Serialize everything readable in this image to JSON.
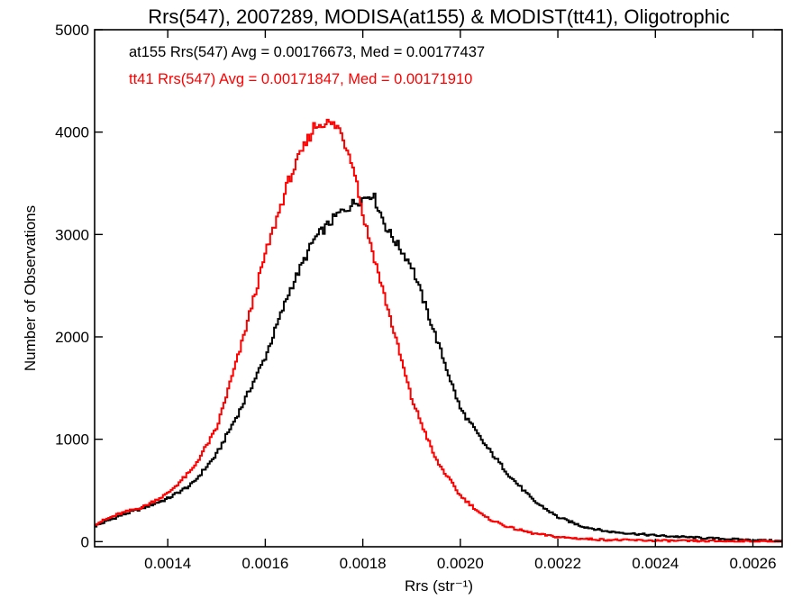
{
  "chart_data": {
    "type": "line",
    "step": true,
    "title": "Rrs(547), 2007289, MODISA(at155) & MODIST(tt41), Oligotrophic",
    "xlabel": "Rrs (str⁻¹)",
    "ylabel": "Number of Observations",
    "xlim": [
      0.00125,
      0.00266
    ],
    "ylim": [
      -50,
      5000
    ],
    "xticks": [
      0.0014,
      0.0016,
      0.0018,
      0.002,
      0.0022,
      0.0024,
      0.0026
    ],
    "xtick_labels": [
      "0.0014",
      "0.0016",
      "0.0018",
      "0.0020",
      "0.0022",
      "0.0024",
      "0.0026"
    ],
    "yticks": [
      0,
      1000,
      2000,
      3000,
      4000,
      5000
    ],
    "ytick_labels": [
      "0",
      "1000",
      "2000",
      "3000",
      "4000",
      "5000"
    ],
    "grid": false,
    "legend_position": "top-left",
    "annotations": [
      {
        "text": "at155 Rrs(547) Avg = 0.00176673, Med = 0.00177437",
        "color": "#000000"
      },
      {
        "text": "tt41 Rrs(547) Avg = 0.00171847, Med = 0.00171910",
        "color": "#ff0000"
      }
    ],
    "series": [
      {
        "color": "#000000",
        "x": [
          0.00125,
          0.0013,
          0.00135,
          0.0014,
          0.00145,
          0.0015,
          0.00155,
          0.0016,
          0.00165,
          0.0017,
          0.00175,
          0.00178,
          0.0018,
          0.00182,
          0.00185,
          0.0019,
          0.00195,
          0.002,
          0.00205,
          0.0021,
          0.00215,
          0.0022,
          0.00225,
          0.0023,
          0.0024,
          0.0025,
          0.0026,
          0.00266
        ],
        "y": [
          150,
          250,
          330,
          420,
          560,
          850,
          1300,
          1800,
          2450,
          2950,
          3200,
          3300,
          3350,
          3400,
          3050,
          2700,
          2000,
          1300,
          950,
          650,
          400,
          240,
          150,
          100,
          60,
          35,
          15,
          5
        ]
      },
      {
        "color": "#ff0000",
        "x": [
          0.00125,
          0.0013,
          0.00135,
          0.0014,
          0.00145,
          0.0015,
          0.00155,
          0.0016,
          0.00165,
          0.0017,
          0.00172,
          0.00175,
          0.00178,
          0.0018,
          0.00185,
          0.0019,
          0.00195,
          0.002,
          0.00205,
          0.0021,
          0.00215,
          0.0022,
          0.00225,
          0.0023,
          0.0024,
          0.0025,
          0.0026,
          0.00266
        ],
        "y": [
          170,
          270,
          340,
          470,
          700,
          1100,
          1900,
          2800,
          3550,
          4050,
          4100,
          4050,
          3700,
          3200,
          2300,
          1400,
          800,
          450,
          240,
          140,
          80,
          45,
          28,
          18,
          10,
          5,
          3,
          2
        ]
      }
    ]
  }
}
